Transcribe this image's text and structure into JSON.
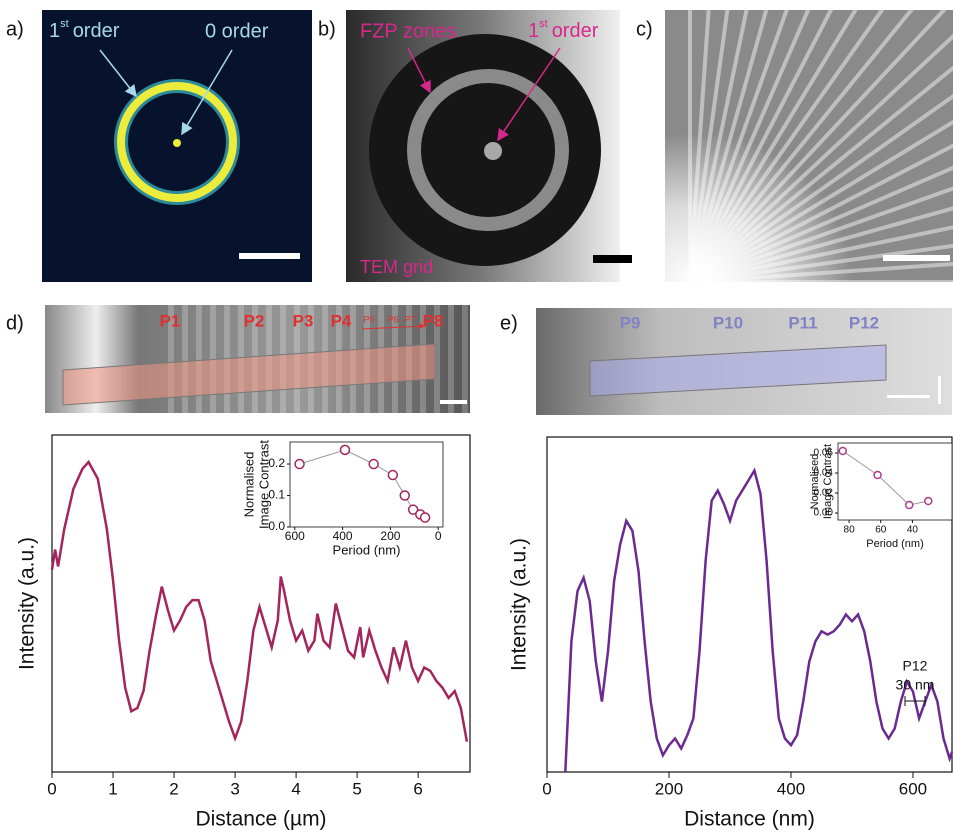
{
  "figure": {
    "panel_labels": [
      "a)",
      "b)",
      "c)",
      "d)",
      "e)"
    ],
    "a": {
      "first_order": {
        "number": "1",
        "sup": "st",
        "rest": "order"
      },
      "zero_order": "0 order"
    },
    "b": {
      "fzp": "FZP zones",
      "first_order": {
        "number": "1",
        "sup": "st",
        "rest": "order"
      },
      "tem": "TEM grid"
    },
    "d": {
      "positions": [
        "P1",
        "P2",
        "P3",
        "P4",
        "P5",
        "P6",
        "P7",
        "P8"
      ]
    },
    "e": {
      "positions": [
        "P9",
        "P10",
        "P11",
        "P12"
      ]
    }
  },
  "chart_data": [
    {
      "type": "line",
      "color": "#a3255c",
      "x": [
        0,
        0.05,
        0.1,
        0.2,
        0.35,
        0.5,
        0.6,
        0.75,
        0.9,
        1.0,
        1.1,
        1.2,
        1.3,
        1.4,
        1.5,
        1.6,
        1.7,
        1.8,
        1.9,
        2.0,
        2.1,
        2.2,
        2.3,
        2.4,
        2.5,
        2.6,
        2.8,
        2.9,
        3.0,
        3.1,
        3.2,
        3.3,
        3.4,
        3.5,
        3.6,
        3.7,
        3.75,
        3.8,
        3.9,
        4.0,
        4.1,
        4.2,
        4.3,
        4.35,
        4.45,
        4.55,
        4.65,
        4.75,
        4.85,
        4.95,
        5.05,
        5.1,
        5.2,
        5.3,
        5.4,
        5.5,
        5.6,
        5.7,
        5.8,
        5.9,
        6.0,
        6.1,
        6.2,
        6.3,
        6.4,
        6.5,
        6.6,
        6.7,
        6.8
      ],
      "values": [
        0.6,
        0.66,
        0.61,
        0.72,
        0.84,
        0.9,
        0.92,
        0.87,
        0.72,
        0.57,
        0.39,
        0.25,
        0.18,
        0.19,
        0.24,
        0.36,
        0.46,
        0.55,
        0.48,
        0.42,
        0.45,
        0.49,
        0.51,
        0.51,
        0.45,
        0.33,
        0.21,
        0.15,
        0.1,
        0.15,
        0.27,
        0.42,
        0.49,
        0.43,
        0.37,
        0.45,
        0.58,
        0.54,
        0.45,
        0.39,
        0.42,
        0.36,
        0.39,
        0.47,
        0.39,
        0.37,
        0.5,
        0.43,
        0.36,
        0.34,
        0.43,
        0.34,
        0.42,
        0.36,
        0.31,
        0.27,
        0.37,
        0.31,
        0.39,
        0.31,
        0.27,
        0.31,
        0.3,
        0.27,
        0.25,
        0.22,
        0.24,
        0.19,
        0.09
      ],
      "xlim": [
        0,
        6.85
      ],
      "ylim": [
        0,
        1
      ],
      "xticks": [
        0,
        1,
        2,
        3,
        4,
        5,
        6
      ],
      "xlabel": "Distance (µm)",
      "ylabel": "Intensity (a.u.)"
    },
    {
      "type": "line",
      "marker": "circle",
      "color": "#a3255c",
      "line_color": "#999999",
      "x": [
        580,
        390,
        270,
        190,
        140,
        105,
        75,
        55
      ],
      "values": [
        0.2,
        0.245,
        0.2,
        0.165,
        0.1,
        0.055,
        0.04,
        0.03
      ],
      "xlim": [
        620,
        -20
      ],
      "ylim": [
        0,
        0.27
      ],
      "xticks": [
        600,
        400,
        200,
        0
      ],
      "yticks": [
        {
          "value": 0,
          "label": "0.0"
        },
        {
          "value": 0.1,
          "label": "0.1"
        },
        {
          "value": 0.2,
          "label": "0.2"
        }
      ],
      "xlabel": "Period (nm)",
      "ylabel": [
        "Normalised",
        "Image Contrast"
      ]
    },
    {
      "type": "line",
      "color": "#6b2a90",
      "x": [
        30,
        40,
        50,
        60,
        70,
        80,
        90,
        100,
        110,
        120,
        130,
        140,
        150,
        160,
        170,
        180,
        190,
        200,
        210,
        220,
        230,
        240,
        250,
        260,
        270,
        280,
        290,
        300,
        310,
        320,
        330,
        340,
        350,
        360,
        370,
        380,
        390,
        400,
        410,
        420,
        430,
        440,
        450,
        460,
        470,
        480,
        490,
        500,
        510,
        520,
        530,
        540,
        550,
        560,
        570,
        580,
        590,
        600,
        610,
        620,
        630,
        640,
        650,
        660,
        664
      ],
      "values": [
        0,
        0.39,
        0.54,
        0.58,
        0.51,
        0.33,
        0.21,
        0.36,
        0.57,
        0.68,
        0.75,
        0.72,
        0.6,
        0.39,
        0.21,
        0.1,
        0.05,
        0.08,
        0.1,
        0.07,
        0.11,
        0.16,
        0.36,
        0.63,
        0.81,
        0.84,
        0.8,
        0.75,
        0.81,
        0.84,
        0.87,
        0.9,
        0.83,
        0.63,
        0.36,
        0.16,
        0.1,
        0.08,
        0.11,
        0.21,
        0.33,
        0.39,
        0.42,
        0.41,
        0.42,
        0.44,
        0.47,
        0.45,
        0.47,
        0.42,
        0.33,
        0.21,
        0.13,
        0.1,
        0.13,
        0.21,
        0.27,
        0.24,
        0.16,
        0.21,
        0.26,
        0.21,
        0.1,
        0.04,
        0.06
      ],
      "xlim": [
        0,
        664
      ],
      "ylim": [
        0,
        1
      ],
      "xticks": [
        0,
        200,
        400,
        600
      ],
      "xlabel": "Distance (nm)",
      "ylabel": "Intensity (a.u.)",
      "annotation": [
        "P12",
        "30 nm"
      ]
    },
    {
      "type": "line",
      "marker": "circle",
      "color": "#b03a8a",
      "line_color": "#999999",
      "x": [
        84,
        62,
        42,
        30
      ],
      "values": [
        0.062,
        0.038,
        0.008,
        0.012
      ],
      "xlim": [
        87,
        15
      ],
      "ylim": [
        -0.007,
        0.07
      ],
      "xticks": [
        80,
        60,
        40
      ],
      "yticks": [
        {
          "value": 0,
          "label": "0.00"
        },
        {
          "value": 0.02,
          "label": "0.02"
        },
        {
          "value": 0.04,
          "label": "0.04"
        },
        {
          "value": 0.06,
          "label": "0.06"
        }
      ],
      "xlabel": "Period (nm)",
      "ylabel": [
        "Normalised",
        "Image Contrast"
      ]
    }
  ]
}
